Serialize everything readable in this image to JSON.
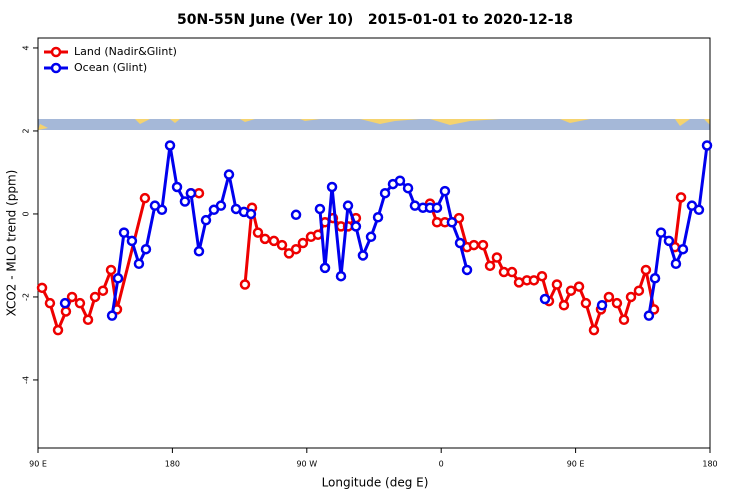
{
  "chart_data": {
    "type": "line",
    "title": "50N-55N June (Ver 10)   2015-01-01 to 2020-12-18",
    "x_label": "Longitude (deg E)",
    "y_label": "XCO2 - MLO trend (ppm)",
    "xlim": [
      90,
      540
    ],
    "xticks": [
      {
        "value": 90,
        "label": "90 E"
      },
      {
        "value": 180,
        "label": "180"
      },
      {
        "value": 270,
        "label": "90 W"
      },
      {
        "value": 360,
        "label": "0"
      },
      {
        "value": 450,
        "label": "90 E"
      },
      {
        "value": 540,
        "label": "180"
      }
    ],
    "ylim": [
      -5.64,
      4.24
    ],
    "yticks": [
      -4,
      -2,
      0,
      2,
      4
    ],
    "grid": false,
    "legend": "topleft",
    "series": [
      {
        "name": "Land (Nadir&Glint)",
        "color": "#ee0000",
        "x": [
          92.7,
          98.0,
          103.4,
          108.7,
          112.8,
          118.1,
          123.5,
          128.2,
          133.5,
          138.9,
          142.9,
          161.6,
          null,
          192.4,
          197.8,
          null,
          228.6,
          233.3,
          237.3,
          242.0,
          248.0,
          253.4,
          258.1,
          262.8,
          267.4,
          272.8,
          277.5,
          282.2,
          287.5,
          292.9,
          297.6,
          302.9,
          null,
          352.5,
          357.2,
          362.5,
          367.2,
          371.9,
          377.3,
          381.9,
          388.0,
          392.7,
          397.3,
          402.0,
          407.4,
          412.1,
          417.4,
          422.1,
          427.5,
          432.2,
          437.5,
          442.2,
          446.9,
          452.3,
          456.9,
          462.3,
          467.0,
          472.3,
          477.7,
          482.4,
          487.1,
          492.4,
          497.1,
          502.5,
          null,
          516.5,
          520.6
        ],
        "values": [
          -1.78,
          -2.15,
          -2.8,
          -2.35,
          -2.0,
          -2.15,
          -2.55,
          -2.0,
          -1.85,
          -1.35,
          -2.3,
          0.38,
          null,
          0.5,
          0.5,
          null,
          -1.7,
          0.15,
          -0.45,
          -0.6,
          -0.65,
          -0.75,
          -0.95,
          -0.85,
          -0.7,
          -0.55,
          -0.5,
          -0.2,
          -0.1,
          -0.3,
          -0.3,
          -0.1,
          null,
          0.25,
          -0.2,
          -0.2,
          -0.2,
          -0.1,
          -0.8,
          -0.75,
          -0.75,
          -1.25,
          -1.05,
          -1.4,
          -1.4,
          -1.65,
          -1.6,
          -1.6,
          -1.5,
          -2.1,
          -1.7,
          -2.2,
          -1.85,
          -1.75,
          -2.15,
          -2.8,
          -2.3,
          -2.0,
          -2.15,
          -2.55,
          -2.0,
          -1.85,
          -1.35,
          -2.3,
          null,
          -0.8,
          0.4
        ]
      },
      {
        "name": "Ocean (Glint)",
        "color": "#0000ee",
        "x": [
          108.1,
          null,
          139.6,
          143.6,
          147.6,
          152.9,
          157.6,
          162.3,
          168.3,
          173.0,
          178.4,
          183.1,
          188.4,
          192.4,
          197.8,
          202.5,
          207.8,
          212.5,
          217.9,
          222.6,
          227.9,
          232.6,
          null,
          262.8,
          null,
          278.8,
          282.2,
          286.9,
          292.9,
          297.6,
          302.9,
          307.6,
          313.0,
          317.7,
          322.4,
          327.7,
          332.4,
          337.8,
          342.4,
          347.8,
          352.5,
          357.2,
          362.5,
          367.2,
          372.6,
          377.3,
          null,
          429.5,
          null,
          467.7,
          null,
          499.1,
          503.2,
          507.2,
          512.5,
          517.2,
          521.9,
          527.9,
          532.6,
          538.0
        ],
        "values": [
          -2.15,
          null,
          -2.45,
          -1.55,
          -0.45,
          -0.65,
          -1.2,
          -0.85,
          0.2,
          0.1,
          1.65,
          0.65,
          0.3,
          0.5,
          -0.9,
          -0.15,
          0.1,
          0.2,
          0.95,
          0.12,
          0.05,
          0.0,
          null,
          -0.02,
          null,
          0.12,
          -1.3,
          0.65,
          -1.5,
          0.2,
          -0.3,
          -1.0,
          -0.55,
          -0.08,
          0.5,
          0.72,
          0.8,
          0.62,
          0.2,
          0.15,
          0.15,
          0.15,
          0.55,
          -0.2,
          -0.7,
          -1.35,
          null,
          -2.05,
          null,
          -2.2,
          null,
          -2.45,
          -1.55,
          -0.45,
          -0.65,
          -1.2,
          -0.85,
          0.2,
          0.1,
          1.65
        ]
      }
    ]
  }
}
